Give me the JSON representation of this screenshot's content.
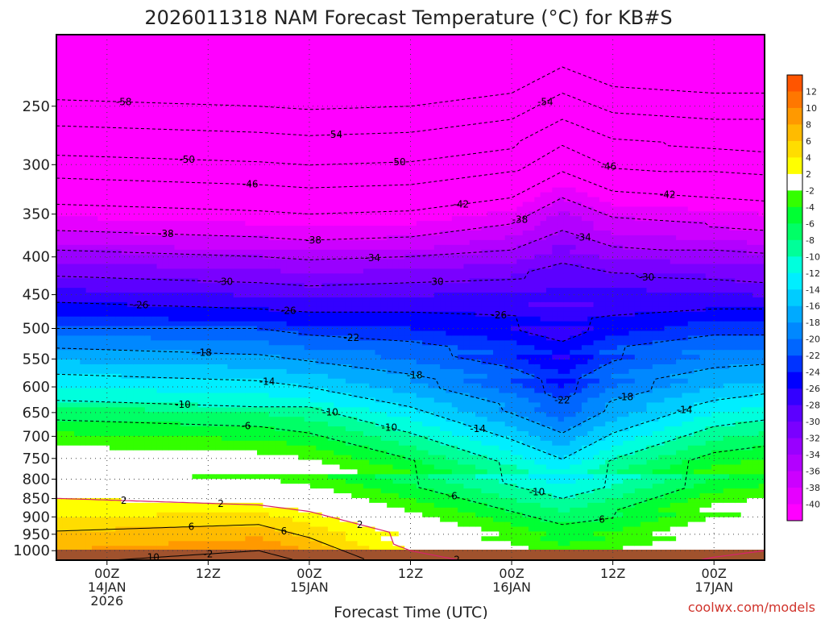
{
  "chart_data": {
    "type": "heatmap",
    "title": "2026011318 NAM Forecast Temperature (°C) for KB#S",
    "xlabel": "Forecast Time (UTC)",
    "ylabel": "",
    "pressure_levels": [
      250,
      300,
      350,
      400,
      450,
      500,
      550,
      600,
      650,
      700,
      750,
      800,
      850,
      900,
      950,
      1000
    ],
    "y_axis_scale": "log-pressure (inverted, hPa)",
    "time_ticks": [
      {
        "hour": 6,
        "lines": [
          "00Z",
          "14JAN",
          "2026"
        ]
      },
      {
        "hour": 18,
        "lines": [
          "12Z"
        ]
      },
      {
        "hour": 30,
        "lines": [
          "00Z",
          "15JAN"
        ]
      },
      {
        "hour": 42,
        "lines": [
          "12Z"
        ]
      },
      {
        "hour": 54,
        "lines": [
          "00Z",
          "16JAN"
        ]
      },
      {
        "hour": 66,
        "lines": [
          "12Z"
        ]
      },
      {
        "hour": 78,
        "lines": [
          "00Z",
          "17JAN"
        ]
      }
    ],
    "x_range_hours": [
      0,
      84
    ],
    "grid": true,
    "colorbar": {
      "placement": "right",
      "labels": [
        "12",
        "10",
        "8",
        "6",
        "4",
        "2",
        "-2",
        "-4",
        "-6",
        "-8",
        "-10",
        "-12",
        "-14",
        "-16",
        "-18",
        "-20",
        "-22",
        "-24",
        "-26",
        "-28",
        "-30",
        "-32",
        "-34",
        "-36",
        "-38",
        "-40"
      ]
    },
    "isotherms": [
      {
        "value": "-58",
        "profile": [
          [
            0,
            -57
          ],
          [
            12,
            -57.5
          ],
          [
            24,
            -58
          ],
          [
            30,
            -58.5
          ],
          [
            42,
            -58
          ],
          [
            54,
            -56
          ],
          [
            60,
            -52
          ],
          [
            66,
            -55
          ],
          [
            78,
            -56
          ],
          [
            84,
            -56
          ]
        ]
      },
      {
        "value": "-54",
        "profile": [
          [
            0,
            -53
          ],
          [
            12,
            -53.5
          ],
          [
            24,
            -54
          ],
          [
            30,
            -54.5
          ],
          [
            42,
            -54
          ],
          [
            54,
            -52
          ],
          [
            60,
            -48
          ],
          [
            66,
            -51
          ],
          [
            78,
            -52
          ],
          [
            84,
            -52
          ]
        ]
      },
      {
        "value": "-50",
        "profile": [
          [
            0,
            -49.5
          ],
          [
            12,
            -50
          ],
          [
            24,
            -50.5
          ],
          [
            30,
            -51
          ],
          [
            42,
            -50.5
          ],
          [
            54,
            -48.5
          ],
          [
            60,
            -44
          ],
          [
            66,
            -47.5
          ],
          [
            78,
            -48.5
          ],
          [
            84,
            -49
          ]
        ]
      },
      {
        "value": "-46",
        "profile": [
          [
            0,
            -45
          ],
          [
            12,
            -45.5
          ],
          [
            24,
            -46
          ],
          [
            30,
            -46.5
          ],
          [
            42,
            -46
          ],
          [
            54,
            -44
          ],
          [
            60,
            -40
          ],
          [
            66,
            -43
          ],
          [
            78,
            -44
          ],
          [
            84,
            -44.5
          ]
        ]
      },
      {
        "value": "-42",
        "profile": [
          [
            0,
            -41
          ],
          [
            12,
            -41.5
          ],
          [
            24,
            -42
          ],
          [
            30,
            -42.5
          ],
          [
            42,
            -42
          ],
          [
            54,
            -40
          ],
          [
            60,
            -36
          ],
          [
            66,
            -39
          ],
          [
            78,
            -40
          ],
          [
            84,
            -40.5
          ]
        ]
      },
      {
        "value": "-38",
        "profile": [
          [
            0,
            -37
          ],
          [
            12,
            -37.5
          ],
          [
            24,
            -38
          ],
          [
            30,
            -38.5
          ],
          [
            42,
            -38
          ],
          [
            54,
            -36
          ],
          [
            60,
            -33
          ],
          [
            66,
            -35.5
          ],
          [
            78,
            -36.5
          ],
          [
            84,
            -37
          ]
        ]
      },
      {
        "value": "-34",
        "profile": [
          [
            0,
            -32
          ],
          [
            12,
            -32.5
          ],
          [
            24,
            -33
          ],
          [
            30,
            -33.5
          ],
          [
            42,
            -33
          ],
          [
            54,
            -32
          ],
          [
            60,
            -30
          ],
          [
            66,
            -31.5
          ],
          [
            78,
            -32
          ],
          [
            84,
            -32.5
          ]
        ]
      },
      {
        "value": "-30",
        "profile": [
          [
            0,
            -28
          ],
          [
            12,
            -28.5
          ],
          [
            24,
            -29
          ],
          [
            30,
            -29.5
          ],
          [
            42,
            -29
          ],
          [
            54,
            -28.5
          ],
          [
            60,
            -28
          ],
          [
            66,
            -28
          ],
          [
            78,
            -28.5
          ],
          [
            84,
            -29
          ]
        ]
      },
      {
        "value": "-26",
        "profile": [
          [
            0,
            -24
          ],
          [
            12,
            -24.5
          ],
          [
            24,
            -25
          ],
          [
            30,
            -25.5
          ],
          [
            42,
            -25.5
          ],
          [
            54,
            -26
          ],
          [
            60,
            -27
          ],
          [
            66,
            -26
          ],
          [
            78,
            -25
          ],
          [
            84,
            -25
          ]
        ]
      },
      {
        "value": "-22",
        "profile": [
          [
            0,
            -19
          ],
          [
            12,
            -19.5
          ],
          [
            24,
            -20
          ],
          [
            30,
            -21
          ],
          [
            42,
            -22
          ],
          [
            54,
            -24
          ],
          [
            60,
            -26
          ],
          [
            66,
            -23
          ],
          [
            78,
            -21
          ],
          [
            84,
            -21
          ]
        ]
      },
      {
        "value": "-18",
        "profile": [
          [
            0,
            -15
          ],
          [
            12,
            -15.5
          ],
          [
            24,
            -16
          ],
          [
            30,
            -17
          ],
          [
            42,
            -19
          ],
          [
            54,
            -22
          ],
          [
            60,
            -25
          ],
          [
            66,
            -21
          ],
          [
            78,
            -18
          ],
          [
            84,
            -17.5
          ]
        ]
      },
      {
        "value": "-14",
        "profile": [
          [
            0,
            -11
          ],
          [
            12,
            -11.5
          ],
          [
            24,
            -12
          ],
          [
            30,
            -13
          ],
          [
            42,
            -16
          ],
          [
            54,
            -20
          ],
          [
            60,
            -23
          ],
          [
            66,
            -19
          ],
          [
            78,
            -15
          ],
          [
            84,
            -14
          ]
        ]
      },
      {
        "value": "-10",
        "profile": [
          [
            0,
            -6
          ],
          [
            12,
            -6.5
          ],
          [
            24,
            -7
          ],
          [
            30,
            -8
          ],
          [
            42,
            -12
          ],
          [
            54,
            -17
          ],
          [
            60,
            -20
          ],
          [
            66,
            -16
          ],
          [
            78,
            -11
          ],
          [
            84,
            -10
          ]
        ]
      },
      {
        "value": "-6",
        "profile": [
          [
            0,
            -2
          ],
          [
            12,
            -2.5
          ],
          [
            24,
            -3
          ],
          [
            30,
            -4
          ],
          [
            42,
            -8
          ],
          [
            54,
            -13
          ],
          [
            60,
            -16
          ],
          [
            66,
            -12
          ],
          [
            78,
            -7
          ],
          [
            84,
            -6
          ]
        ]
      },
      {
        "value": "2",
        "profile": [
          [
            0,
            2
          ],
          [
            12,
            1.5
          ],
          [
            24,
            1
          ],
          [
            30,
            0
          ],
          [
            42,
            -4
          ],
          [
            54,
            -8
          ],
          [
            60,
            -10
          ],
          [
            66,
            -8
          ],
          [
            78,
            -3
          ],
          [
            84,
            -2
          ]
        ]
      },
      {
        "value": "6",
        "profile": [
          [
            0,
            5
          ],
          [
            12,
            5.5
          ],
          [
            24,
            6
          ],
          [
            30,
            4
          ],
          [
            42,
            0
          ],
          [
            54,
            -4
          ],
          [
            60,
            -6
          ],
          [
            66,
            -5
          ],
          [
            78,
            -1
          ],
          [
            84,
            0
          ]
        ]
      },
      {
        "value": "10",
        "profile": [
          [
            0,
            8
          ],
          [
            12,
            9
          ],
          [
            24,
            10
          ],
          [
            30,
            8
          ],
          [
            42,
            2
          ],
          [
            54,
            -1
          ],
          [
            60,
            -3
          ],
          [
            66,
            -2
          ],
          [
            78,
            1
          ],
          [
            84,
            2
          ]
        ]
      }
    ],
    "contour_labels": [
      "-58",
      "-54",
      "-54",
      "-50",
      "-50",
      "-46",
      "-46",
      "-42",
      "-42",
      "-38",
      "-38",
      "-38",
      "-34",
      "-34",
      "-30",
      "-30",
      "-30",
      "-26",
      "-26",
      "-26",
      "-22",
      "-22",
      "-18",
      "-18",
      "-18",
      "-14",
      "-14",
      "-14",
      "-10",
      "-10",
      "-10",
      "-10",
      "-6",
      "-6",
      "-6",
      "2",
      "2",
      "2",
      "2",
      "6",
      "6",
      "10",
      "-2"
    ]
  },
  "credit": "coolwx.com/models"
}
